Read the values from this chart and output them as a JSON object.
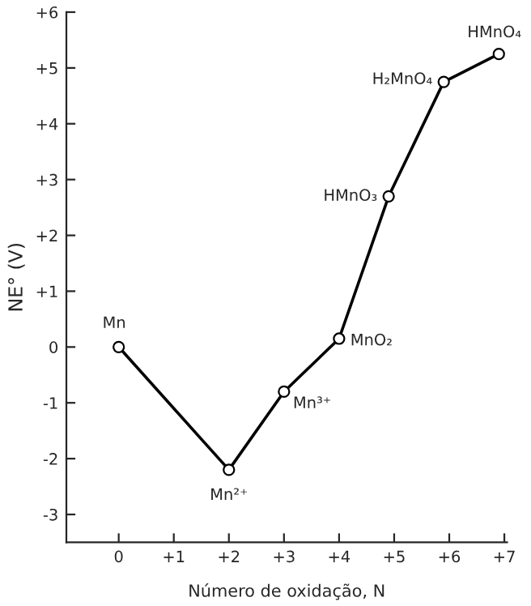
{
  "chart_data": {
    "type": "line",
    "xlabel": "Número de oxidação, N",
    "ylabel": "NE° (V)",
    "x": [
      0,
      2,
      3,
      4,
      4.9,
      5.9,
      6.9
    ],
    "series": [
      {
        "color": "#000000",
        "values": [
          0,
          -2.2,
          -0.8,
          0.15,
          2.7,
          4.75,
          5.25
        ]
      }
    ],
    "marker": "circle",
    "line_style": "solid",
    "xlim": [
      -0.95,
      7.05
    ],
    "ylim": [
      -3.5,
      6
    ],
    "xticks": [
      0,
      {
        "value": 1,
        "label": "+1"
      },
      {
        "value": 2,
        "label": "+2"
      },
      {
        "value": 3,
        "label": "+3"
      },
      {
        "value": 4,
        "label": "+4"
      },
      {
        "value": 5,
        "label": "+5"
      },
      {
        "value": 6,
        "label": "+6"
      },
      {
        "value": 7,
        "label": "+7"
      }
    ],
    "yticks": [
      -3,
      -2,
      -1,
      0,
      {
        "value": 1,
        "label": "+1"
      },
      {
        "value": 2,
        "label": "+2"
      },
      {
        "value": 3,
        "label": "+3"
      },
      {
        "value": 4,
        "label": "+4"
      },
      {
        "value": 5,
        "label": "+5"
      },
      {
        "value": 6,
        "label": "+6"
      }
    ],
    "annotations": [
      {
        "text": "Mn",
        "x": 0,
        "y": 0
      },
      {
        "text": "Mn²⁺",
        "x": 2,
        "y": -2.2
      },
      {
        "text": "Mn³⁺",
        "x": 3,
        "y": -0.8
      },
      {
        "text": "MnO₂",
        "x": 4,
        "y": 0.15
      },
      {
        "text": "HMnO₃",
        "x": 4.9,
        "y": 2.7
      },
      {
        "text": "H₂MnO₄",
        "x": 5.9,
        "y": 4.75
      },
      {
        "text": "HMnO₄",
        "x": 6.9,
        "y": 5.25
      }
    ]
  }
}
